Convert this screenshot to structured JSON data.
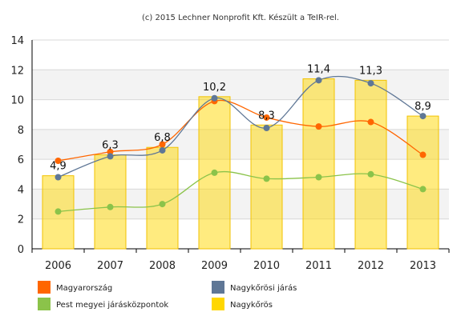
{
  "caption": "(c) 2015 Lechner Nonprofit Kft. Készült a TeIR-rel.",
  "chart_data": {
    "type": "bar",
    "categories": [
      "2006",
      "2007",
      "2008",
      "2009",
      "2010",
      "2011",
      "2012",
      "2013"
    ],
    "ylim": [
      0,
      14
    ],
    "yticks": [
      "0",
      "2",
      "4",
      "6",
      "8",
      "10",
      "12",
      "14"
    ],
    "grid": true,
    "legend_position": "bottom",
    "bar_series": {
      "name": "Nagykőrös",
      "color": "#ffd700",
      "values": [
        4.9,
        6.3,
        6.8,
        10.2,
        8.3,
        11.4,
        11.3,
        8.9
      ],
      "labels": [
        "4,9",
        "6,3",
        "6,8",
        "10,2",
        "8,3",
        "11,4",
        "11,3",
        "8,9"
      ]
    },
    "line_series": [
      {
        "name": "Magyarország",
        "color": "#ff6600",
        "values": [
          5.9,
          6.5,
          7.0,
          9.9,
          8.8,
          8.2,
          8.5,
          6.3
        ]
      },
      {
        "name": "Nagykőrösi járás",
        "color": "#5f7796",
        "values": [
          4.8,
          6.2,
          6.6,
          10.1,
          8.1,
          11.3,
          11.1,
          8.9
        ]
      },
      {
        "name": "Pest megyei járásközpontok",
        "color": "#8bc34a",
        "values": [
          2.5,
          2.8,
          3.0,
          5.1,
          4.7,
          4.8,
          5.0,
          4.0
        ]
      }
    ],
    "legend": [
      {
        "name": "Magyarország",
        "color": "#ff6600"
      },
      {
        "name": "Nagykőrösi járás",
        "color": "#5f7796"
      },
      {
        "name": "Pest megyei járásközpontok",
        "color": "#8bc34a"
      },
      {
        "name": "Nagykőrös",
        "color": "#ffd700"
      }
    ]
  }
}
